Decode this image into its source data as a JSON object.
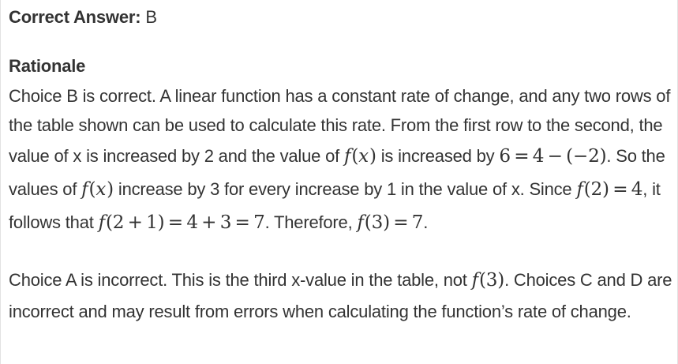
{
  "colors": {
    "text": "#333333",
    "border": "#e2e2e2",
    "background": "#ffffff"
  },
  "answer": {
    "label": "Correct Answer:",
    "value": "B"
  },
  "rationale": {
    "heading": "Rationale",
    "paragraphs": [
      [
        {
          "type": "text",
          "content": "Choice B is correct. A linear function has a constant rate of change, and any two rows of the table shown can be used to calculate this rate. From the first row to the second, the value of x is increased by 2 and the value of "
        },
        {
          "type": "math",
          "content": "f(x)"
        },
        {
          "type": "text",
          "content": " is increased by "
        },
        {
          "type": "math",
          "content": "6 = 4 − (−2)"
        },
        {
          "type": "text",
          "content": ". So the values of "
        },
        {
          "type": "math",
          "content": "f(x)"
        },
        {
          "type": "text",
          "content": " increase by 3 for every increase by 1 in the value of x. Since "
        },
        {
          "type": "math",
          "content": "f(2) = 4"
        },
        {
          "type": "text",
          "content": ", it follows that "
        },
        {
          "type": "math",
          "content": "f(2 + 1) = 4 + 3 = 7"
        },
        {
          "type": "text",
          "content": ". Therefore, "
        },
        {
          "type": "math",
          "content": "f(3) = 7"
        },
        {
          "type": "text",
          "content": "."
        }
      ],
      [
        {
          "type": "text",
          "content": "Choice A is incorrect. This is the third x-value in the table, not "
        },
        {
          "type": "math",
          "content": "f(3)"
        },
        {
          "type": "text",
          "content": ". Choices C and D are incorrect and may result from errors when calculating the function’s rate of change."
        }
      ]
    ]
  }
}
